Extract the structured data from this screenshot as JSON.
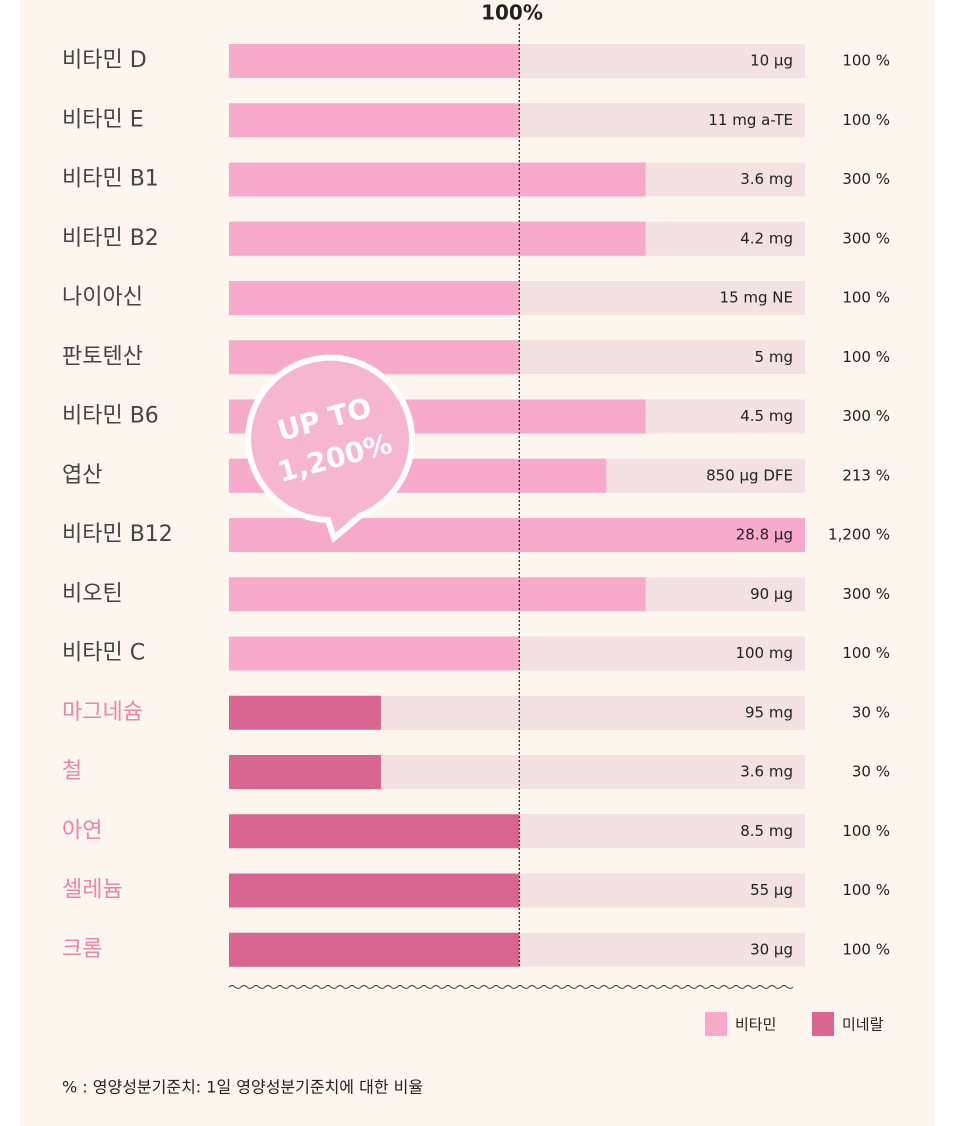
{
  "chart_data": {
    "type": "bar",
    "orientation": "horizontal",
    "reference_label": "100%",
    "reference_value": 100,
    "categories": [
      "비타민 D",
      "비타민 E",
      "비타민 B1",
      "비타민 B2",
      "나이아신",
      "판토텐산",
      "비타민 B6",
      "엽산",
      "비타민 B12",
      "비오틴",
      "비타민 C",
      "마그네슘",
      "철",
      "아연",
      "셀레늄",
      "크롬"
    ],
    "amounts": [
      "10 μg",
      "11 mg a-TE",
      "3.6 mg",
      "4.2 mg",
      "15 mg NE",
      "5 mg",
      "4.5 mg",
      "850 μg DFE",
      "28.8 μg",
      "90 μg",
      "100 mg",
      "95 mg",
      "3.6 mg",
      "8.5 mg",
      "55 μg",
      "30 μg"
    ],
    "series": [
      {
        "name": "비타민",
        "color": "#f8aacb",
        "label_color": "#444444",
        "values": [
          100,
          100,
          300,
          300,
          100,
          100,
          300,
          213,
          1200,
          300,
          100,
          null,
          null,
          null,
          null,
          null
        ],
        "value_labels": [
          "100 %",
          "100 %",
          "300 %",
          "300 %",
          "100 %",
          "100 %",
          "300 %",
          "213 %",
          "1,200 %",
          "300 %",
          "100 %",
          null,
          null,
          null,
          null,
          null
        ]
      },
      {
        "name": "미네랄",
        "color": "#da6590",
        "label_color": "#ea86ab",
        "values": [
          null,
          null,
          null,
          null,
          null,
          null,
          null,
          null,
          null,
          null,
          null,
          30,
          30,
          100,
          100,
          100
        ],
        "value_labels": [
          null,
          null,
          null,
          null,
          null,
          null,
          null,
          null,
          null,
          null,
          null,
          "30 %",
          "30 %",
          "100 %",
          "100 %",
          "100 %"
        ]
      }
    ],
    "xlim": [
      8,
      1200
    ],
    "log_scale": true,
    "track_color": "#f3e1e3",
    "annotation": [
      "UP TO",
      "1,200%"
    ],
    "footnote": "% : 영양성분기준치: 1일 영양성분기준치에 대한 비율"
  }
}
